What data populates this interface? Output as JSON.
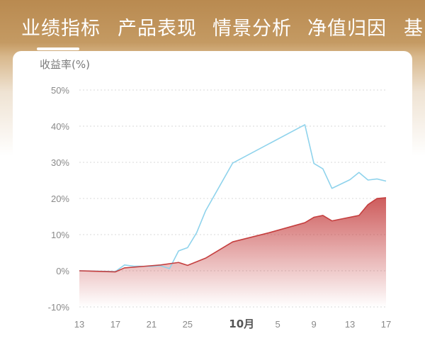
{
  "tabs": [
    {
      "label": "业绩指标",
      "active": true
    },
    {
      "label": "产品表现",
      "active": false
    },
    {
      "label": "情景分析",
      "active": false
    },
    {
      "label": "净值归因",
      "active": false
    },
    {
      "label": "基",
      "active": false
    }
  ],
  "colors": {
    "header_bg": "#b98a52",
    "tab_text": "#ffffff",
    "series_fund": "#c53f3f",
    "series_benchmark": "#8fd3ec",
    "grid": "#d9d9d9",
    "axis_text": "#8a8a8a"
  },
  "chart_data": {
    "type": "line",
    "ylabel": "收益率(%)",
    "ylim": [
      -10,
      50
    ],
    "yticks": [
      "50%",
      "40%",
      "30%",
      "20%",
      "10%",
      "0%",
      "-10%"
    ],
    "ytick_values": [
      50,
      40,
      30,
      20,
      10,
      0,
      -10
    ],
    "xticks": [
      {
        "label": "13",
        "idx": 0,
        "bold": false
      },
      {
        "label": "17",
        "idx": 4,
        "bold": false
      },
      {
        "label": "21",
        "idx": 8,
        "bold": false
      },
      {
        "label": "25",
        "idx": 12,
        "bold": false
      },
      {
        "label": "10月",
        "idx": 18,
        "bold": true
      },
      {
        "label": "5",
        "idx": 22,
        "bold": false
      },
      {
        "label": "9",
        "idx": 26,
        "bold": false
      },
      {
        "label": "13",
        "idx": 30,
        "bold": false
      },
      {
        "label": "17",
        "idx": 34,
        "bold": false
      }
    ],
    "x_count": 35,
    "grid": true,
    "series": [
      {
        "role": "fund",
        "fill": true,
        "points": [
          [
            0,
            0
          ],
          [
            4,
            -0.3
          ],
          [
            5,
            0.8
          ],
          [
            7,
            1.2
          ],
          [
            9,
            1.6
          ],
          [
            11,
            2.3
          ],
          [
            12,
            1.5
          ],
          [
            14,
            3.5
          ],
          [
            17,
            8
          ],
          [
            21,
            10.5
          ],
          [
            25,
            13.3
          ],
          [
            26,
            14.8
          ],
          [
            27,
            15.3
          ],
          [
            28,
            13.8
          ],
          [
            31,
            15.3
          ],
          [
            32,
            18.3
          ],
          [
            33,
            20
          ],
          [
            34,
            20.2
          ]
        ]
      },
      {
        "role": "benchmark",
        "fill": false,
        "points": [
          [
            0,
            0
          ],
          [
            4,
            -0.2
          ],
          [
            5,
            1.6
          ],
          [
            6,
            1.3
          ],
          [
            8,
            1.2
          ],
          [
            9,
            1.4
          ],
          [
            10,
            0.6
          ],
          [
            11,
            5.5
          ],
          [
            12,
            6.4
          ],
          [
            13,
            10.5
          ],
          [
            14,
            16.6
          ],
          [
            17,
            29.8
          ],
          [
            25,
            40.4
          ],
          [
            26,
            29.7
          ],
          [
            27,
            28.2
          ],
          [
            28,
            22.8
          ],
          [
            30,
            25.2
          ],
          [
            31,
            27.2
          ],
          [
            32,
            25.1
          ],
          [
            33,
            25.4
          ],
          [
            34,
            24.8
          ]
        ]
      }
    ]
  }
}
